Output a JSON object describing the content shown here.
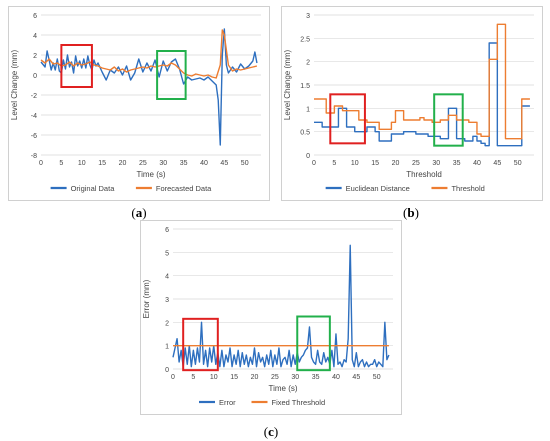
{
  "panels": [
    {
      "label": "a",
      "chart_data": {
        "type": "line",
        "xlabel": "Time (s)",
        "ylabel": "Level Change (mm)",
        "xlim": [
          0,
          54
        ],
        "ylim": [
          -8,
          6
        ],
        "xticks": [
          0,
          5,
          10,
          15,
          20,
          25,
          30,
          35,
          40,
          45,
          50
        ],
        "yticks": [
          -8,
          -6,
          -4,
          -2,
          0,
          2,
          4,
          6
        ],
        "grid": "horizontal",
        "legend": "bottom",
        "series": [
          {
            "name": "Original Data",
            "color": "#2e6fbf",
            "x": [
              0,
              1,
              1.5,
              2,
              2.5,
              3,
              3.5,
              4,
              4.5,
              5,
              5.5,
              6,
              6.5,
              7,
              7.5,
              8,
              8.5,
              9,
              9.5,
              10,
              10.5,
              11,
              11.5,
              12,
              12.5,
              13,
              13.5,
              14,
              15,
              16,
              17,
              18,
              19,
              20,
              21,
              22,
              23,
              24,
              25,
              26,
              27,
              28,
              29,
              30,
              31,
              32,
              33,
              34,
              35,
              36,
              37,
              38,
              39,
              40,
              41,
              42,
              43,
              43.5,
              44,
              44.5,
              45,
              45.5,
              46,
              47,
              48,
              49,
              50,
              51,
              52,
              52.5,
              53
            ],
            "y": [
              1.3,
              0.8,
              2.4,
              1.5,
              0.5,
              1.2,
              0.5,
              1.6,
              0.4,
              0.2,
              1.5,
              0.6,
              2.0,
              0.8,
              1.3,
              0.2,
              1.9,
              0.9,
              1.4,
              0.7,
              1.6,
              0.7,
              1.9,
              1.0,
              0.5,
              1.5,
              0.9,
              1.2,
              0.3,
              -0.5,
              0.5,
              0.2,
              0.8,
              0.0,
              0.9,
              -0.5,
              0.2,
              1.6,
              0.3,
              1.2,
              0.4,
              1.5,
              -0.2,
              1.4,
              0.4,
              1.3,
              1.6,
              0.6,
              -0.9,
              -0.2,
              -0.5,
              -0.4,
              -0.3,
              -0.5,
              -0.2,
              -0.6,
              -1.0,
              -2.5,
              -7.0,
              2.0,
              4.6,
              1.0,
              0.2,
              0.8,
              0.3,
              1.1,
              0.6,
              0.9,
              1.4,
              2.3,
              1.2
            ]
          },
          {
            "name": "Forecasted Data",
            "color": "#ed7d31",
            "x": [
              0,
              1,
              2,
              3,
              4,
              5,
              6,
              7,
              8,
              9,
              10,
              11,
              12,
              13,
              14,
              15,
              16,
              17,
              18,
              19,
              20,
              21,
              22,
              23,
              24,
              25,
              26,
              27,
              28,
              29,
              30,
              31,
              32,
              33,
              34,
              35,
              36,
              37,
              38,
              39,
              40,
              41,
              42,
              43,
              44,
              44.5,
              45,
              46,
              47,
              48,
              49,
              50,
              51,
              52,
              53
            ],
            "y": [
              1.5,
              1.2,
              1.6,
              1.1,
              1.2,
              0.9,
              1.0,
              1.3,
              0.9,
              1.2,
              1.0,
              1.1,
              1.3,
              1.0,
              0.9,
              0.7,
              0.6,
              0.5,
              0.8,
              0.4,
              0.6,
              0.3,
              0.5,
              0.6,
              0.7,
              0.8,
              0.7,
              0.9,
              0.8,
              0.9,
              1.0,
              0.9,
              1.2,
              1.0,
              0.6,
              0.2,
              0.0,
              -0.1,
              0.1,
              0.0,
              -0.1,
              0.0,
              -0.2,
              -0.3,
              1.0,
              4.5,
              4.0,
              1.0,
              0.4,
              0.6,
              0.5,
              0.6,
              0.7,
              0.8,
              0.9
            ]
          }
        ],
        "highlights": [
          {
            "color": "#e02020",
            "x": [
              5,
              12.5
            ],
            "y": [
              -1.2,
              3.0
            ]
          },
          {
            "color": "#22b04b",
            "x": [
              28.5,
              35.5
            ],
            "y": [
              -2.4,
              2.4
            ]
          }
        ]
      }
    },
    {
      "label": "b",
      "chart_data": {
        "type": "line",
        "xlabel": "Threshold",
        "ylabel": "Level Change (mm)",
        "xlim": [
          0,
          54
        ],
        "ylim": [
          0,
          3
        ],
        "xticks": [
          0,
          5,
          10,
          15,
          20,
          25,
          30,
          35,
          40,
          45,
          50
        ],
        "yticks": [
          0,
          0.5,
          1,
          1.5,
          2,
          2.5,
          3
        ],
        "grid": "horizontal",
        "legend": "bottom",
        "series": [
          {
            "name": "Euclidean Distance",
            "color": "#2e6fbf",
            "step": true,
            "x": [
              0,
              2,
              4,
              6,
              8,
              10,
              12,
              13,
              15,
              16,
              17,
              19,
              21,
              22,
              24,
              25,
              27,
              28,
              30,
              31,
              33,
              35,
              36,
              37,
              38,
              39,
              40,
              41,
              42,
              43,
              44,
              45,
              48,
              50,
              51,
              53
            ],
            "y": [
              0.7,
              0.6,
              0.6,
              1.0,
              0.6,
              0.5,
              0.5,
              0.6,
              0.5,
              0.3,
              0.3,
              0.45,
              0.45,
              0.5,
              0.5,
              0.45,
              0.45,
              0.4,
              0.4,
              0.35,
              1.0,
              0.35,
              0.35,
              0.3,
              0.3,
              0.4,
              0.3,
              0.25,
              0.2,
              2.4,
              2.4,
              0.2,
              0.2,
              0.2,
              1.05,
              1.05
            ]
          },
          {
            "name": "Threshold",
            "color": "#ed7d31",
            "step": true,
            "x": [
              0,
              1,
              3,
              5,
              7,
              9,
              11,
              13,
              15,
              16,
              17,
              19,
              20,
              21,
              22,
              24,
              26,
              27,
              29,
              31,
              33,
              35,
              36,
              37,
              38,
              39,
              40,
              41,
              42,
              43,
              44,
              45,
              46,
              47,
              49,
              51,
              53
            ],
            "y": [
              1.2,
              1.2,
              0.9,
              1.05,
              0.95,
              0.95,
              0.75,
              0.7,
              0.7,
              0.55,
              0.55,
              0.7,
              0.95,
              0.95,
              0.75,
              0.75,
              0.8,
              0.75,
              0.7,
              0.75,
              0.85,
              0.75,
              0.75,
              0.75,
              0.7,
              0.7,
              0.45,
              0.4,
              0.4,
              2.05,
              2.05,
              2.8,
              2.8,
              0.35,
              0.35,
              1.2,
              1.2
            ]
          }
        ],
        "highlights": [
          {
            "color": "#e02020",
            "x": [
              4,
              12.5
            ],
            "y": [
              0.25,
              1.3
            ]
          },
          {
            "color": "#22b04b",
            "x": [
              29.5,
              36.5
            ],
            "y": [
              0.2,
              1.3
            ]
          }
        ]
      }
    },
    {
      "label": "c",
      "chart_data": {
        "type": "line",
        "xlabel": "Time (s)",
        "ylabel": "Error (mm)",
        "xlim": [
          0,
          54
        ],
        "ylim": [
          0,
          6
        ],
        "xticks": [
          0,
          5,
          10,
          15,
          20,
          25,
          30,
          35,
          40,
          45,
          50
        ],
        "yticks": [
          0,
          1,
          2,
          3,
          4,
          5,
          6
        ],
        "grid": "horizontal",
        "legend": "bottom",
        "series": [
          {
            "name": "Error",
            "color": "#2e6fbf",
            "x": [
              0,
              0.5,
              1,
              1.5,
              2,
              2.5,
              3,
              3.5,
              4,
              4.5,
              5,
              5.5,
              6,
              6.5,
              7,
              7.5,
              8,
              8.5,
              9,
              9.5,
              10,
              10.5,
              11,
              11.5,
              12,
              12.5,
              13,
              13.5,
              14,
              14.5,
              15,
              15.5,
              16,
              16.5,
              17,
              17.5,
              18,
              18.5,
              19,
              19.5,
              20,
              20.5,
              21,
              21.5,
              22,
              22.5,
              23,
              23.5,
              24,
              24.5,
              25,
              25.5,
              26,
              26.5,
              27,
              27.5,
              28,
              28.5,
              29,
              29.5,
              30,
              30.5,
              31,
              31.5,
              32,
              32.5,
              33,
              33.5,
              34,
              34.5,
              35,
              35.5,
              36,
              36.5,
              37,
              37.5,
              38,
              38.5,
              39,
              39.5,
              40,
              40.5,
              41,
              41.5,
              42,
              42.5,
              43,
              43.5,
              44,
              44.5,
              45,
              45.5,
              46,
              46.5,
              47,
              47.5,
              48,
              48.5,
              49,
              49.5,
              50,
              50.5,
              51,
              51.5,
              52,
              52.5,
              53
            ],
            "y": [
              0.5,
              0.9,
              1.3,
              0.3,
              0.8,
              0.1,
              0.9,
              0.2,
              1.0,
              0.1,
              0.8,
              0.2,
              0.9,
              0.3,
              2.0,
              0.2,
              0.8,
              0.1,
              0.9,
              0.3,
              1.0,
              0.2,
              0.7,
              0.1,
              0.8,
              0.1,
              0.6,
              0.3,
              0.9,
              0.1,
              0.6,
              0.2,
              0.8,
              0.1,
              0.7,
              0.2,
              0.6,
              0.1,
              0.5,
              0.2,
              0.9,
              0.1,
              0.7,
              0.3,
              0.5,
              0.1,
              0.6,
              0.2,
              0.8,
              0.1,
              0.6,
              0.2,
              0.9,
              0.1,
              0.4,
              0.5,
              0.2,
              0.8,
              0.1,
              0.6,
              0.2,
              0.7,
              0.3,
              0.5,
              0.6,
              0.8,
              0.9,
              1.8,
              0.5,
              0.3,
              0.2,
              0.8,
              0.3,
              0.2,
              0.7,
              0.3,
              0.5,
              0.2,
              0.8,
              0.1,
              1.5,
              0.2,
              0.3,
              0.1,
              0.4,
              0.3,
              1.3,
              5.3,
              0.4,
              0.1,
              0.7,
              0.1,
              0.3,
              0.4,
              0.1,
              0.3,
              0.1,
              0.2,
              0.2,
              0.4,
              0.1,
              0.3,
              0.2,
              0.1,
              2.0,
              0.4,
              0.6
            ]
          },
          {
            "name": "Fixed Threshold",
            "color": "#ed7d31",
            "x": [
              0,
              53
            ],
            "y": [
              1.0,
              1.0
            ]
          }
        ],
        "highlights": [
          {
            "color": "#e02020",
            "x": [
              2.5,
              11
            ],
            "y": [
              -0.05,
              2.15
            ]
          },
          {
            "color": "#22b04b",
            "x": [
              30.5,
              38.5
            ],
            "y": [
              -0.05,
              2.25
            ]
          }
        ]
      }
    }
  ]
}
